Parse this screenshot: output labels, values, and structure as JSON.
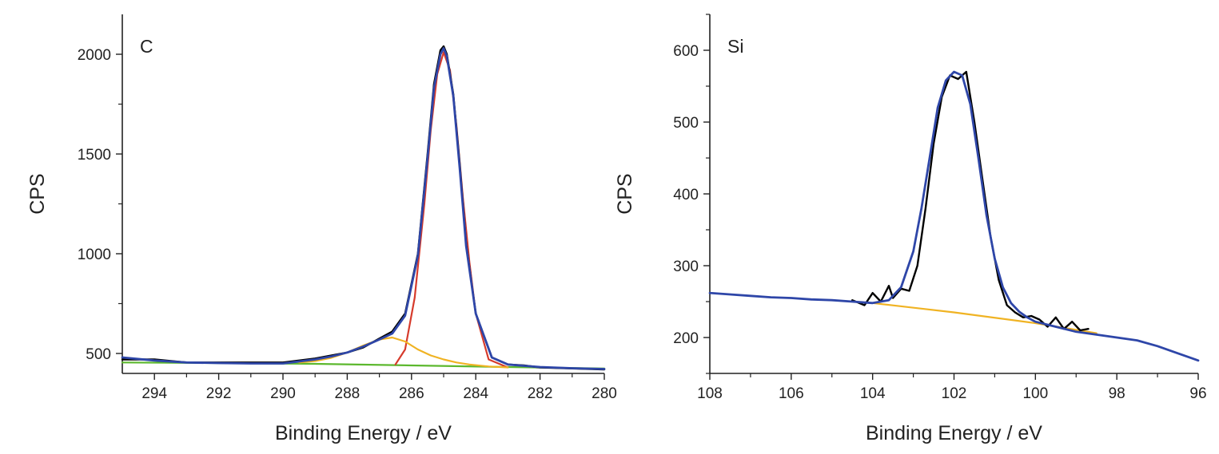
{
  "chart_data": [
    {
      "type": "line",
      "panel_label": "C",
      "xlabel": "Binding Energy / eV",
      "ylabel": "CPS",
      "xlim": [
        295,
        280
      ],
      "ylim": [
        400,
        2200
      ],
      "x_reversed": true,
      "xticks": [
        294,
        292,
        290,
        288,
        286,
        284,
        282,
        280
      ],
      "yticks": [
        500,
        1000,
        1500,
        2000
      ],
      "grid": false,
      "series": [
        {
          "role": "measured",
          "color": "#000000",
          "x": [
            295,
            294,
            293,
            292,
            291,
            290,
            289.5,
            289,
            288.5,
            288,
            287.5,
            287,
            286.6,
            286.2,
            285.8,
            285.5,
            285.3,
            285.1,
            285.0,
            284.9,
            284.7,
            284.5,
            284.3,
            284.0,
            283.5,
            283,
            282.5,
            282,
            281,
            280
          ],
          "y": [
            470,
            470,
            455,
            455,
            455,
            455,
            465,
            475,
            490,
            505,
            530,
            575,
            610,
            700,
            1000,
            1500,
            1850,
            2020,
            2040,
            2000,
            1800,
            1450,
            1050,
            700,
            480,
            445,
            440,
            430,
            425,
            420
          ]
        },
        {
          "role": "fit envelope",
          "color": "#2e46a8",
          "x": [
            295,
            294,
            293,
            292,
            291,
            290,
            289.5,
            289,
            288.5,
            288,
            287.5,
            287,
            286.6,
            286.2,
            285.8,
            285.5,
            285.3,
            285.1,
            285.0,
            284.9,
            284.7,
            284.5,
            284.3,
            284.0,
            283.5,
            283,
            282.5,
            282,
            281,
            280
          ],
          "y": [
            480,
            465,
            455,
            452,
            450,
            450,
            460,
            470,
            485,
            505,
            535,
            570,
            600,
            690,
            990,
            1480,
            1830,
            2000,
            2030,
            1990,
            1790,
            1430,
            1040,
            700,
            480,
            445,
            438,
            432,
            426,
            422
          ]
        },
        {
          "role": "component peak",
          "color": "#d63b2c",
          "x": [
            286.5,
            286.2,
            285.9,
            285.6,
            285.4,
            285.2,
            285.0,
            284.8,
            284.6,
            284.4,
            284.2,
            284.0,
            283.6,
            283.0
          ],
          "y": [
            445,
            520,
            780,
            1250,
            1620,
            1900,
            2010,
            1920,
            1640,
            1280,
            960,
            700,
            470,
            430
          ]
        },
        {
          "role": "component peak",
          "color": "#f0b323",
          "x": [
            289.5,
            289,
            288.5,
            288,
            287.5,
            287,
            286.6,
            286.2,
            285.8,
            285.4,
            285.0,
            284.6,
            284.2,
            283.6,
            283.0
          ],
          "y": [
            455,
            462,
            478,
            505,
            540,
            570,
            580,
            560,
            520,
            490,
            470,
            455,
            445,
            435,
            430
          ]
        },
        {
          "role": "background",
          "color": "#5cb82e",
          "x": [
            295,
            292,
            289,
            286,
            283,
            280
          ],
          "y": [
            455,
            452,
            448,
            440,
            432,
            425
          ]
        }
      ]
    },
    {
      "type": "line",
      "panel_label": "Si",
      "xlabel": "Binding Energy / eV",
      "ylabel": "CPS",
      "xlim": [
        108,
        96
      ],
      "ylim": [
        150,
        650
      ],
      "x_reversed": true,
      "xticks": [
        108,
        106,
        104,
        102,
        100,
        98,
        96
      ],
      "yticks": [
        200,
        300,
        400,
        500,
        600
      ],
      "grid": false,
      "series": [
        {
          "role": "measured",
          "color": "#000000",
          "x": [
            104.5,
            104.2,
            104.0,
            103.8,
            103.6,
            103.5,
            103.3,
            103.1,
            102.9,
            102.7,
            102.5,
            102.3,
            102.1,
            101.9,
            101.7,
            101.5,
            101.3,
            101.1,
            100.9,
            100.7,
            100.5,
            100.3,
            100.1,
            99.9,
            99.7,
            99.5,
            99.3,
            99.1,
            98.9,
            98.7
          ],
          "y": [
            252,
            245,
            262,
            250,
            272,
            255,
            268,
            265,
            300,
            380,
            470,
            535,
            565,
            560,
            570,
            500,
            420,
            340,
            280,
            245,
            235,
            228,
            230,
            225,
            215,
            228,
            212,
            222,
            210,
            212
          ]
        },
        {
          "role": "fit envelope",
          "color": "#2e46a8",
          "x": [
            108,
            107.5,
            107,
            106.5,
            106,
            105.5,
            105,
            104.5,
            104,
            103.6,
            103.3,
            103.0,
            102.8,
            102.6,
            102.4,
            102.2,
            102.0,
            101.8,
            101.6,
            101.4,
            101.2,
            101.0,
            100.8,
            100.6,
            100.4,
            100.2,
            100.0,
            99.5,
            99,
            98.5,
            98,
            97.5,
            97,
            96.5,
            96.2,
            96
          ],
          "y": [
            262,
            260,
            258,
            256,
            255,
            253,
            252,
            250,
            248,
            252,
            270,
            320,
            380,
            450,
            520,
            558,
            570,
            565,
            525,
            450,
            370,
            310,
            270,
            248,
            236,
            228,
            222,
            215,
            208,
            204,
            200,
            196,
            188,
            178,
            172,
            168
          ]
        },
        {
          "role": "background",
          "color": "#f0b323",
          "x": [
            104,
            102,
            100,
            98.5
          ],
          "y": [
            248,
            235,
            220,
            206
          ]
        }
      ]
    }
  ]
}
